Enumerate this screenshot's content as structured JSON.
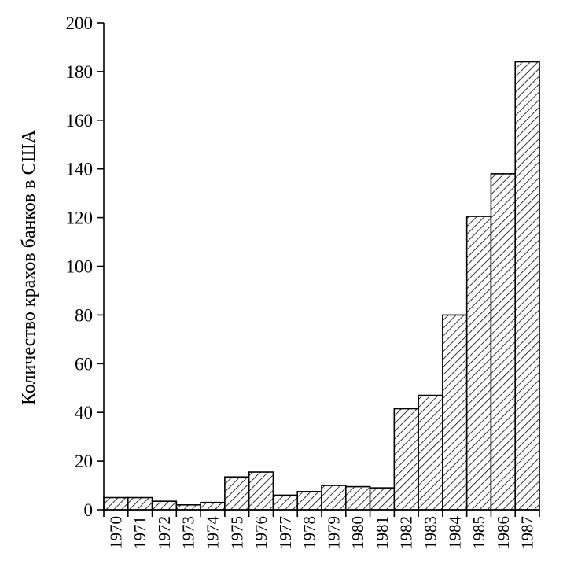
{
  "chart_data": {
    "type": "bar",
    "title": "",
    "xlabel": "",
    "ylabel": "Количество крахов банков в США",
    "ylim": [
      0,
      200
    ],
    "yticks": [
      0,
      20,
      40,
      60,
      80,
      100,
      120,
      140,
      160,
      180,
      200
    ],
    "grid": false,
    "legend": "none",
    "bar_fill": "hatched",
    "categories": [
      "1970",
      "1971",
      "1972",
      "1973",
      "1974",
      "1975",
      "1976",
      "1977",
      "1978",
      "1979",
      "1980",
      "1981",
      "1982",
      "1983",
      "1984",
      "1985",
      "1986",
      "1987"
    ],
    "values": [
      5,
      5,
      3.5,
      2,
      3,
      13.5,
      15.5,
      6,
      7.5,
      10,
      9.5,
      9,
      41.5,
      47,
      80,
      120.5,
      138,
      184
    ]
  },
  "colors": {
    "axis": "#000000",
    "bar_stroke": "#000000",
    "hatch": "#000000",
    "background": "#ffffff"
  }
}
